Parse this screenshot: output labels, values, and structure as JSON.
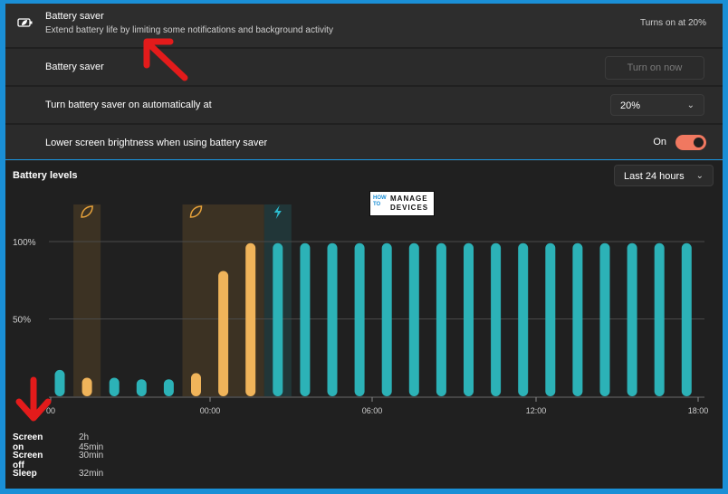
{
  "header": {
    "title": "Battery saver",
    "subtitle": "Extend battery life by limiting some notifications and background activity",
    "status": "Turns on at 20%"
  },
  "rows": {
    "battery_saver": {
      "label": "Battery saver",
      "button": "Turn on now"
    },
    "auto": {
      "label": "Turn battery saver on automatically at",
      "value": "20%"
    },
    "brightness": {
      "label": "Lower screen brightness when using battery saver",
      "state": "On"
    }
  },
  "levels": {
    "title": "Battery levels",
    "range": "Last 24 hours"
  },
  "logo": {
    "l1": "HOW TO",
    "l2": "MANAGE",
    "l3": "DEVICES"
  },
  "chart_data": {
    "type": "bar",
    "y_ticks": [
      "100%",
      "50%"
    ],
    "x_ticks": [
      "00",
      "00:00",
      "06:00",
      "12:00",
      "18:00"
    ],
    "ylim": [
      0,
      100
    ],
    "values": [
      17,
      12,
      12,
      11,
      11,
      15,
      81,
      99,
      99,
      99,
      99,
      99,
      99,
      99,
      99,
      99,
      99,
      99,
      99,
      99,
      99,
      99,
      99,
      99
    ],
    "saver_bar_indices": [
      1,
      5,
      6,
      7
    ],
    "highlight_ranges": [
      {
        "from": 1,
        "to": 1,
        "icon": "leaf-icon",
        "color": "#e8a33b"
      },
      {
        "from": 5,
        "to": 7,
        "icon": "leaf-icon",
        "color": "#e8a33b"
      },
      {
        "from": 8,
        "to": 8,
        "icon": "lightning-icon",
        "color": "#2dbdd0"
      }
    ],
    "colors": {
      "normal": "#2cb2b7",
      "saver": "#f0b45a",
      "grid": "#4a4a4a"
    }
  },
  "stats": [
    {
      "label": "Screen on",
      "value": "2h 45min"
    },
    {
      "label": "Screen off",
      "value": "30min"
    },
    {
      "label": "Sleep",
      "value": "32min"
    }
  ]
}
